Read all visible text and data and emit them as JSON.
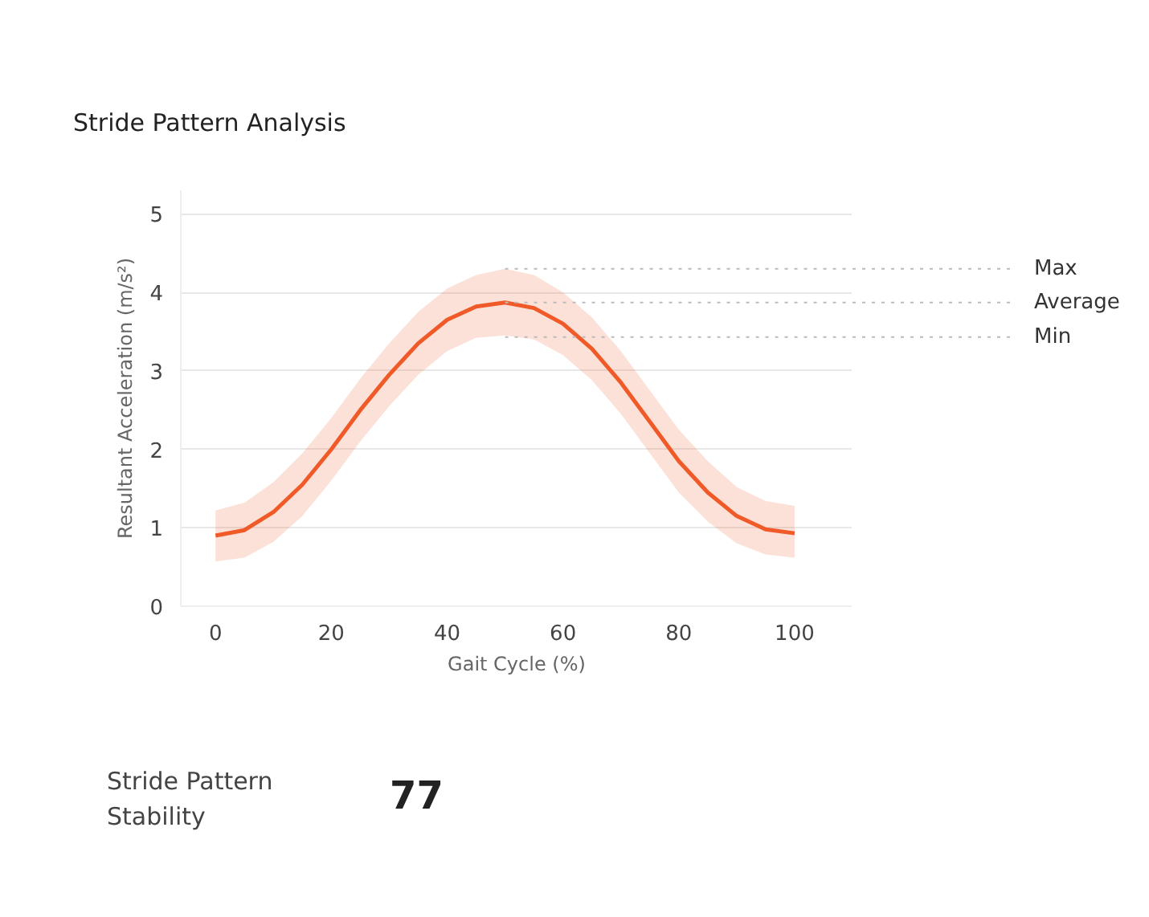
{
  "chart_data": {
    "type": "line",
    "title": "Stride Pattern Analysis",
    "xlabel": "Gait Cycle (%)",
    "ylabel": "Resultant Acceleration (m/s²)",
    "x": [
      0,
      5,
      10,
      15,
      20,
      25,
      30,
      35,
      40,
      45,
      50,
      55,
      60,
      65,
      70,
      75,
      80,
      85,
      90,
      95,
      100
    ],
    "series": [
      {
        "color": "#f05a28",
        "values": [
          0.9,
          0.97,
          1.2,
          1.55,
          2.0,
          2.5,
          2.95,
          3.35,
          3.65,
          3.82,
          3.87,
          3.8,
          3.6,
          3.28,
          2.85,
          2.35,
          1.85,
          1.45,
          1.15,
          0.98,
          0.93
        ],
        "lower": [
          0.57,
          0.62,
          0.82,
          1.15,
          1.6,
          2.1,
          2.55,
          2.95,
          3.25,
          3.42,
          3.45,
          3.4,
          3.2,
          2.88,
          2.45,
          1.95,
          1.45,
          1.08,
          0.8,
          0.66,
          0.62
        ],
        "upper": [
          1.22,
          1.32,
          1.58,
          1.95,
          2.4,
          2.9,
          3.35,
          3.75,
          4.05,
          4.22,
          4.3,
          4.22,
          4.0,
          3.68,
          3.25,
          2.75,
          2.25,
          1.85,
          1.52,
          1.34,
          1.28
        ]
      }
    ],
    "xlim": [
      -6,
      110
    ],
    "ylim": [
      0,
      5.3
    ],
    "xticks": [
      0,
      20,
      40,
      60,
      80,
      100
    ],
    "yticks": [
      0,
      1,
      2,
      3,
      4,
      5
    ],
    "grid": "y",
    "line_style": "solid",
    "marker": "none",
    "ref_lines": [
      {
        "axis": "y",
        "value": 4.3,
        "label": "Max",
        "color": "#bbbbbb",
        "line_style": "dotted"
      },
      {
        "axis": "y",
        "value": 3.87,
        "label": "Average",
        "color": "#bbbbbb",
        "line_style": "dotted"
      },
      {
        "axis": "y",
        "value": 3.43,
        "label": "Min",
        "color": "#bbbbbb",
        "line_style": "dotted"
      }
    ],
    "annotations": [
      "Stride Pattern Stability",
      "77"
    ]
  }
}
